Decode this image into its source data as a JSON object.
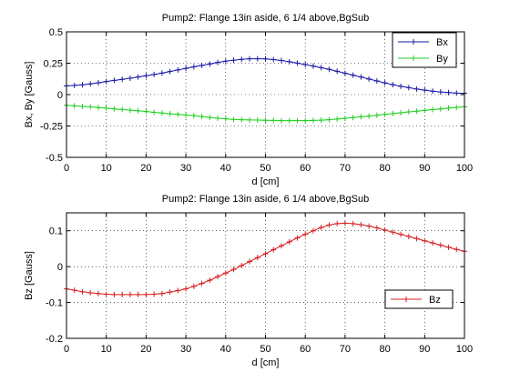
{
  "chart_data": [
    {
      "type": "line",
      "title": "Pump2: Flange 13in aside, 6 1/4 above,BgSub",
      "xlabel": "d [cm]",
      "ylabel": "Bx, By [Gauss]",
      "xlim": [
        0,
        100
      ],
      "ylim": [
        -0.5,
        0.5
      ],
      "xticks": [
        0,
        10,
        20,
        30,
        40,
        50,
        60,
        70,
        80,
        90,
        100
      ],
      "yticks": [
        -0.5,
        -0.25,
        0,
        0.25,
        0.5
      ],
      "ytick_labels": [
        "-0.5",
        "-0.25",
        "0",
        "0.25",
        "0.5"
      ],
      "grid": true,
      "legend_placement": "top-right",
      "series": [
        {
          "name": "Bx",
          "color": "#1a1aa6",
          "marker": "plus",
          "x": [
            0,
            2,
            4,
            6,
            8,
            10,
            12,
            14,
            16,
            18,
            20,
            22,
            24,
            26,
            28,
            30,
            32,
            34,
            36,
            38,
            40,
            42,
            44,
            46,
            48,
            50,
            52,
            54,
            56,
            58,
            60,
            62,
            64,
            66,
            68,
            70,
            72,
            74,
            76,
            78,
            80,
            82,
            84,
            86,
            88,
            90,
            92,
            94,
            96,
            98,
            100
          ],
          "y": [
            0.07,
            0.073,
            0.078,
            0.085,
            0.094,
            0.104,
            0.113,
            0.121,
            0.13,
            0.14,
            0.15,
            0.16,
            0.171,
            0.184,
            0.197,
            0.208,
            0.221,
            0.233,
            0.244,
            0.256,
            0.266,
            0.274,
            0.281,
            0.285,
            0.285,
            0.284,
            0.279,
            0.272,
            0.262,
            0.251,
            0.239,
            0.227,
            0.215,
            0.201,
            0.186,
            0.17,
            0.155,
            0.14,
            0.124,
            0.109,
            0.093,
            0.079,
            0.066,
            0.055,
            0.044,
            0.035,
            0.027,
            0.021,
            0.016,
            0.012,
            0.01
          ]
        },
        {
          "name": "By",
          "color": "#22d022",
          "marker": "plus",
          "x": [
            0,
            2,
            4,
            6,
            8,
            10,
            12,
            14,
            16,
            18,
            20,
            22,
            24,
            26,
            28,
            30,
            32,
            34,
            36,
            38,
            40,
            42,
            44,
            46,
            48,
            50,
            52,
            54,
            56,
            58,
            60,
            62,
            64,
            66,
            68,
            70,
            72,
            74,
            76,
            78,
            80,
            82,
            84,
            86,
            88,
            90,
            92,
            94,
            96,
            98,
            100
          ],
          "y": [
            -0.085,
            -0.09,
            -0.094,
            -0.098,
            -0.103,
            -0.108,
            -0.114,
            -0.119,
            -0.124,
            -0.129,
            -0.135,
            -0.141,
            -0.147,
            -0.153,
            -0.158,
            -0.163,
            -0.168,
            -0.175,
            -0.182,
            -0.188,
            -0.193,
            -0.198,
            -0.2,
            -0.202,
            -0.203,
            -0.205,
            -0.206,
            -0.207,
            -0.207,
            -0.207,
            -0.207,
            -0.206,
            -0.204,
            -0.2,
            -0.195,
            -0.189,
            -0.183,
            -0.177,
            -0.171,
            -0.165,
            -0.158,
            -0.151,
            -0.145,
            -0.138,
            -0.132,
            -0.126,
            -0.12,
            -0.114,
            -0.108,
            -0.102,
            -0.097
          ]
        }
      ]
    },
    {
      "type": "line",
      "title": "Pump2: Flange 13in aside, 6 1/4 above,BgSub",
      "xlabel": "d [cm]",
      "ylabel": "Bz [Gauss]",
      "xlim": [
        0,
        100
      ],
      "ylim": [
        -0.2,
        0.15
      ],
      "xticks": [
        0,
        10,
        20,
        30,
        40,
        50,
        60,
        70,
        80,
        90,
        100
      ],
      "yticks": [
        -0.2,
        -0.1,
        0,
        0.1
      ],
      "ytick_labels": [
        "-0.2",
        "-0.1",
        "0",
        "0.1"
      ],
      "grid": true,
      "legend_placement": "bottom-right",
      "series": [
        {
          "name": "Bz",
          "color": "#d62020",
          "marker": "plus",
          "x": [
            0,
            2,
            4,
            6,
            8,
            10,
            12,
            14,
            16,
            18,
            20,
            22,
            24,
            26,
            28,
            30,
            32,
            34,
            36,
            38,
            40,
            42,
            44,
            46,
            48,
            50,
            52,
            54,
            56,
            58,
            60,
            62,
            64,
            66,
            68,
            70,
            72,
            74,
            76,
            78,
            80,
            82,
            84,
            86,
            88,
            90,
            92,
            94,
            96,
            98,
            100
          ],
          "y": [
            -0.062,
            -0.066,
            -0.07,
            -0.073,
            -0.075,
            -0.077,
            -0.078,
            -0.078,
            -0.078,
            -0.078,
            -0.078,
            -0.077,
            -0.075,
            -0.071,
            -0.067,
            -0.062,
            -0.055,
            -0.047,
            -0.038,
            -0.028,
            -0.018,
            -0.008,
            0.003,
            0.014,
            0.025,
            0.036,
            0.047,
            0.058,
            0.069,
            0.08,
            0.09,
            0.1,
            0.109,
            0.116,
            0.12,
            0.121,
            0.12,
            0.117,
            0.113,
            0.108,
            0.102,
            0.096,
            0.09,
            0.084,
            0.078,
            0.072,
            0.066,
            0.06,
            0.054,
            0.048,
            0.043
          ]
        }
      ]
    }
  ]
}
